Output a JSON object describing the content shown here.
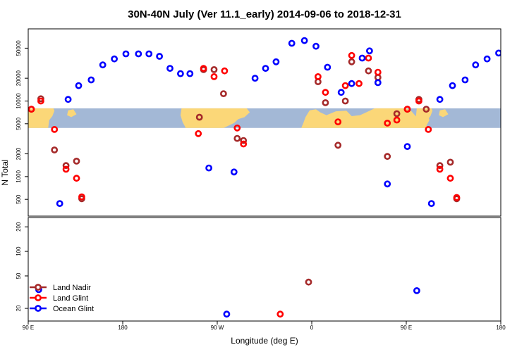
{
  "chart_data": {
    "type": "scatter",
    "title": "30N-40N July (Ver 11.1_early)   2014-09-06 to 2018-12-31",
    "xlabel": "Longitude (deg E)",
    "ylabel": "N Total",
    "x_ticks": [
      {
        "value": 90,
        "label": "90 E"
      },
      {
        "value": 180,
        "label": "180"
      },
      {
        "value": 270,
        "label": "90 W"
      },
      {
        "value": 360,
        "label": "0"
      },
      {
        "value": 450,
        "label": "90 E"
      },
      {
        "value": 540,
        "label": "180"
      }
    ],
    "xlim": [
      90,
      540
    ],
    "upper_panel": {
      "yscale": "log",
      "ylim": [
        300,
        90000
      ],
      "y_ticks": [
        "500",
        "1000",
        "2000",
        "5000",
        "10000",
        "20000",
        "50000"
      ],
      "map_band": {
        "lat_range": "30N-40N",
        "y_range": [
          4400,
          8000
        ],
        "ocean_color": "#a3b8d6",
        "land_color": "#fbd778"
      }
    },
    "lower_panel": {
      "yscale": "log",
      "ylim": [
        14,
        260
      ],
      "y_ticks": [
        "20",
        "50",
        "100",
        "200"
      ]
    },
    "legend": {
      "position": "bottom-left",
      "entries": [
        "Land Nadir",
        "Land Glint",
        "Ocean Glint"
      ]
    },
    "series": [
      {
        "name": "Land Nadir",
        "color": "#a52a2a",
        "points": [
          [
            93,
            7800
          ],
          [
            102,
            10700
          ],
          [
            115,
            2250
          ],
          [
            126,
            1400
          ],
          [
            136,
            1600
          ],
          [
            141,
            510
          ],
          [
            253,
            6100
          ],
          [
            257,
            26000
          ],
          [
            267,
            26000
          ],
          [
            276,
            12500
          ],
          [
            289,
            3200
          ],
          [
            295,
            3000
          ],
          [
            357,
            42
          ],
          [
            366,
            18000
          ],
          [
            373,
            9500
          ],
          [
            385,
            2600
          ],
          [
            392,
            10000
          ],
          [
            398,
            33000
          ],
          [
            414,
            25000
          ],
          [
            423,
            20500
          ],
          [
            432,
            1850
          ],
          [
            441,
            6800
          ],
          [
            451,
            7800
          ],
          [
            462,
            10500
          ],
          [
            469,
            7800
          ],
          [
            482,
            1400
          ],
          [
            492,
            1550
          ],
          [
            498,
            510
          ]
        ]
      },
      {
        "name": "Land Glint",
        "color": "#ff0000",
        "points": [
          [
            93,
            7800
          ],
          [
            102,
            10000
          ],
          [
            115,
            4200
          ],
          [
            126,
            1250
          ],
          [
            136,
            950
          ],
          [
            141,
            540
          ],
          [
            252,
            3700
          ],
          [
            257,
            27000
          ],
          [
            267,
            21000
          ],
          [
            277,
            25000
          ],
          [
            289,
            4400
          ],
          [
            295,
            2700
          ],
          [
            330,
            17
          ],
          [
            366,
            21000
          ],
          [
            373,
            13000
          ],
          [
            385,
            5300
          ],
          [
            392,
            16000
          ],
          [
            398,
            40000
          ],
          [
            405,
            17000
          ],
          [
            414,
            37000
          ],
          [
            423,
            24000
          ],
          [
            432,
            5100
          ],
          [
            441,
            5600
          ],
          [
            451,
            7800
          ],
          [
            462,
            10000
          ],
          [
            471,
            4200
          ],
          [
            482,
            1250
          ],
          [
            492,
            950
          ],
          [
            498,
            530
          ]
        ]
      },
      {
        "name": "Ocean Glint",
        "color": "#0000ff",
        "points": [
          [
            100,
            34
          ],
          [
            120,
            440
          ],
          [
            128,
            10500
          ],
          [
            138,
            16000
          ],
          [
            150,
            19000
          ],
          [
            161,
            30000
          ],
          [
            172,
            36000
          ],
          [
            183,
            42000
          ],
          [
            195,
            42000
          ],
          [
            205,
            42000
          ],
          [
            215,
            39000
          ],
          [
            225,
            27000
          ],
          [
            235,
            23000
          ],
          [
            244,
            23000
          ],
          [
            262,
            1300
          ],
          [
            279,
            17
          ],
          [
            286,
            1150
          ],
          [
            306,
            20000
          ],
          [
            316,
            27000
          ],
          [
            326,
            33000
          ],
          [
            341,
            58000
          ],
          [
            353,
            63000
          ],
          [
            364,
            53000
          ],
          [
            375,
            28000
          ],
          [
            388,
            13000
          ],
          [
            398,
            17000
          ],
          [
            408,
            37000
          ],
          [
            415,
            46000
          ],
          [
            423,
            17500
          ],
          [
            432,
            800
          ],
          [
            451,
            2500
          ],
          [
            460,
            33
          ],
          [
            474,
            440
          ],
          [
            482,
            10500
          ],
          [
            494,
            16000
          ],
          [
            506,
            19000
          ],
          [
            516,
            30000
          ],
          [
            527,
            36000
          ],
          [
            538,
            43000
          ]
        ]
      }
    ]
  }
}
